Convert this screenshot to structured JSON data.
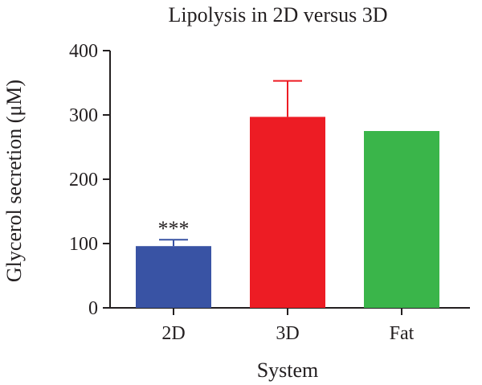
{
  "chart_data": {
    "type": "bar",
    "title": "Lipolysis in 2D versus 3D",
    "xlabel": "System",
    "ylabel": "Glycerol secretion (μM)",
    "categories": [
      "2D",
      "3D",
      "Fat"
    ],
    "values": [
      96,
      297,
      275
    ],
    "error_upper": [
      10,
      56,
      null
    ],
    "annotations": [
      {
        "category": "2D",
        "text": "***"
      }
    ],
    "colors": [
      "#3953a4",
      "#ed1c24",
      "#3ab54a"
    ],
    "ylim": [
      0,
      400
    ],
    "yticks": [
      0,
      100,
      200,
      300,
      400
    ],
    "grid": false,
    "legend": "none"
  }
}
